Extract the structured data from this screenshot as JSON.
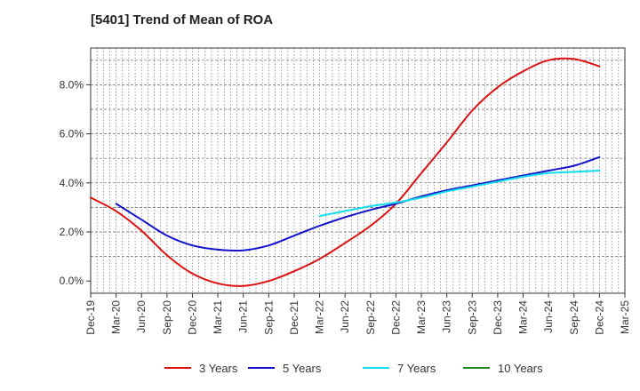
{
  "chart_data": {
    "type": "line",
    "title": "[5401]  Trend of Mean of ROA",
    "xlabel": "",
    "ylabel": "",
    "ylim": [
      -0.5,
      9.5
    ],
    "xlim": [
      0,
      21
    ],
    "y_ticks": [
      0,
      2,
      4,
      6,
      8
    ],
    "y_tick_labels": [
      "0.0%",
      "2.0%",
      "4.0%",
      "6.0%",
      "8.0%"
    ],
    "x_tick_labels": [
      "Dec-19",
      "Mar-20",
      "Jun-20",
      "Sep-20",
      "Dec-20",
      "Mar-21",
      "Jun-21",
      "Sep-21",
      "Dec-21",
      "Mar-22",
      "Jun-22",
      "Sep-22",
      "Dec-22",
      "Mar-23",
      "Jun-23",
      "Sep-23",
      "Dec-23",
      "Mar-24",
      "Jun-24",
      "Sep-24",
      "Dec-24",
      "Mar-25"
    ],
    "grid": true,
    "legend_position": "bottom",
    "series": [
      {
        "name": "3 Years",
        "color": "#dd1111",
        "points": [
          [
            0,
            3.4
          ],
          [
            1,
            2.85
          ],
          [
            2,
            2.05
          ],
          [
            3,
            1.05
          ],
          [
            4,
            0.3
          ],
          [
            5,
            -0.1
          ],
          [
            6,
            -0.2
          ],
          [
            7,
            0.0
          ],
          [
            8,
            0.4
          ],
          [
            9,
            0.9
          ],
          [
            10,
            1.55
          ],
          [
            11,
            2.25
          ],
          [
            12,
            3.15
          ],
          [
            13,
            4.4
          ],
          [
            14,
            5.65
          ],
          [
            15,
            6.95
          ],
          [
            16,
            7.9
          ],
          [
            17,
            8.55
          ],
          [
            18,
            9.0
          ],
          [
            19,
            9.05
          ],
          [
            20,
            8.75
          ]
        ]
      },
      {
        "name": "5 Years",
        "color": "#1111cc",
        "points": [
          [
            1,
            3.15
          ],
          [
            2,
            2.5
          ],
          [
            3,
            1.85
          ],
          [
            4,
            1.45
          ],
          [
            5,
            1.28
          ],
          [
            6,
            1.25
          ],
          [
            7,
            1.45
          ],
          [
            8,
            1.85
          ],
          [
            9,
            2.25
          ],
          [
            10,
            2.6
          ],
          [
            11,
            2.9
          ],
          [
            12,
            3.15
          ],
          [
            13,
            3.45
          ],
          [
            14,
            3.7
          ],
          [
            15,
            3.9
          ],
          [
            16,
            4.1
          ],
          [
            17,
            4.3
          ],
          [
            18,
            4.5
          ],
          [
            19,
            4.7
          ],
          [
            20,
            5.05
          ]
        ]
      },
      {
        "name": "7 Years",
        "color": "#11ddee",
        "points": [
          [
            9,
            2.65
          ],
          [
            10,
            2.85
          ],
          [
            11,
            3.05
          ],
          [
            12,
            3.2
          ],
          [
            13,
            3.4
          ],
          [
            14,
            3.65
          ],
          [
            15,
            3.85
          ],
          [
            16,
            4.05
          ],
          [
            17,
            4.25
          ],
          [
            18,
            4.4
          ],
          [
            19,
            4.45
          ],
          [
            20,
            4.5
          ]
        ]
      },
      {
        "name": "10 Years",
        "color": "#228822",
        "points": []
      }
    ]
  }
}
